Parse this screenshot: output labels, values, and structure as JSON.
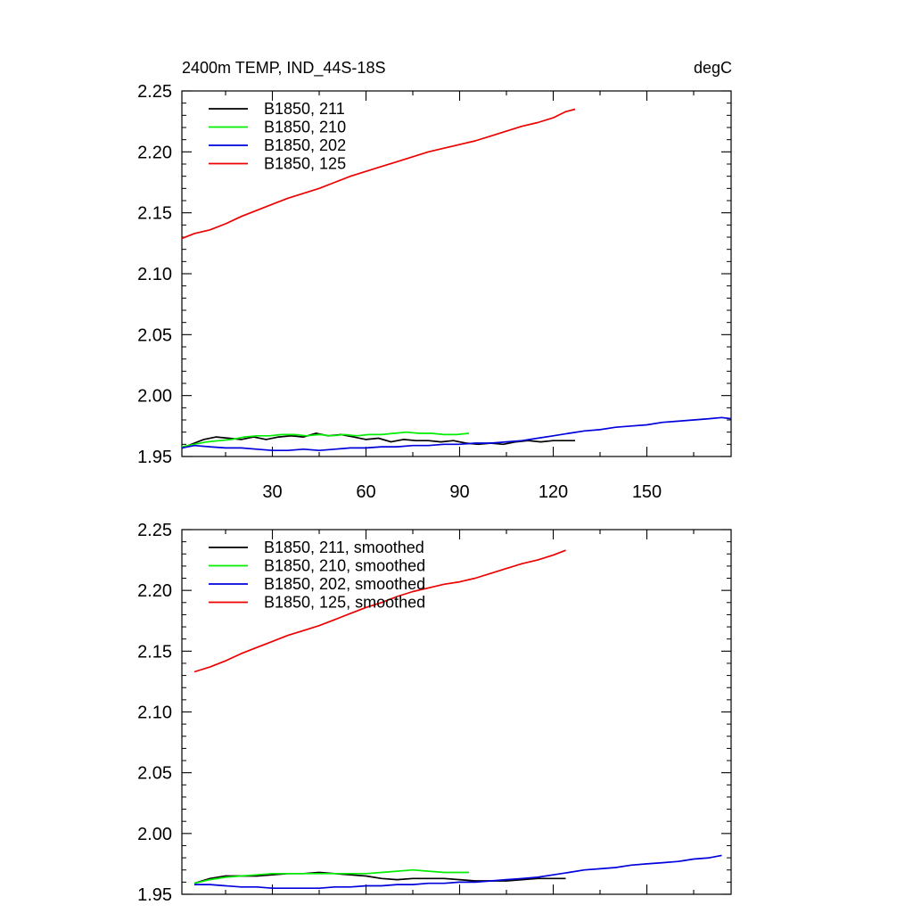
{
  "title_left": "2400m TEMP, IND_44S-18S",
  "title_right": "degC",
  "chart_data": [
    {
      "type": "line",
      "title": "2400m TEMP, IND_44S-18S",
      "units": "degC",
      "xlim": [
        1,
        177
      ],
      "ylim": [
        1.95,
        2.25
      ],
      "x_ticks": [
        30,
        60,
        90,
        120,
        150
      ],
      "y_ticks": [
        "2.25",
        "2.20",
        "2.15",
        "2.10",
        "2.05",
        "2.00",
        "1.95"
      ],
      "legend_position": "top-left",
      "grid": false,
      "series": [
        {
          "name": "B1850, 211",
          "color": "#000000",
          "x_end": 127,
          "points": [
            [
              1,
              1.957
            ],
            [
              5,
              1.961
            ],
            [
              8,
              1.964
            ],
            [
              12,
              1.966
            ],
            [
              16,
              1.965
            ],
            [
              20,
              1.964
            ],
            [
              24,
              1.966
            ],
            [
              28,
              1.964
            ],
            [
              32,
              1.966
            ],
            [
              36,
              1.967
            ],
            [
              40,
              1.966
            ],
            [
              44,
              1.969
            ],
            [
              48,
              1.967
            ],
            [
              52,
              1.968
            ],
            [
              56,
              1.966
            ],
            [
              60,
              1.964
            ],
            [
              64,
              1.965
            ],
            [
              68,
              1.962
            ],
            [
              72,
              1.964
            ],
            [
              76,
              1.963
            ],
            [
              80,
              1.963
            ],
            [
              84,
              1.962
            ],
            [
              88,
              1.963
            ],
            [
              92,
              1.961
            ],
            [
              96,
              1.96
            ],
            [
              100,
              1.961
            ],
            [
              104,
              1.96
            ],
            [
              108,
              1.962
            ],
            [
              112,
              1.963
            ],
            [
              116,
              1.962
            ],
            [
              120,
              1.963
            ],
            [
              124,
              1.963
            ],
            [
              127,
              1.963
            ]
          ]
        },
        {
          "name": "B1850, 210",
          "color": "#00ee00",
          "x_end": 93,
          "points": [
            [
              1,
              1.958
            ],
            [
              5,
              1.96
            ],
            [
              9,
              1.962
            ],
            [
              13,
              1.963
            ],
            [
              17,
              1.964
            ],
            [
              21,
              1.966
            ],
            [
              25,
              1.967
            ],
            [
              29,
              1.967
            ],
            [
              33,
              1.968
            ],
            [
              37,
              1.968
            ],
            [
              41,
              1.967
            ],
            [
              45,
              1.968
            ],
            [
              49,
              1.967
            ],
            [
              53,
              1.968
            ],
            [
              57,
              1.967
            ],
            [
              61,
              1.968
            ],
            [
              65,
              1.968
            ],
            [
              69,
              1.969
            ],
            [
              73,
              1.97
            ],
            [
              77,
              1.969
            ],
            [
              81,
              1.969
            ],
            [
              85,
              1.968
            ],
            [
              89,
              1.968
            ],
            [
              93,
              1.969
            ]
          ]
        },
        {
          "name": "B1850, 202",
          "color": "#0000dd",
          "x_end": 177,
          "points": [
            [
              1,
              1.957
            ],
            [
              5,
              1.959
            ],
            [
              10,
              1.958
            ],
            [
              15,
              1.957
            ],
            [
              20,
              1.957
            ],
            [
              25,
              1.956
            ],
            [
              30,
              1.955
            ],
            [
              35,
              1.955
            ],
            [
              40,
              1.956
            ],
            [
              45,
              1.955
            ],
            [
              50,
              1.956
            ],
            [
              55,
              1.957
            ],
            [
              60,
              1.957
            ],
            [
              65,
              1.958
            ],
            [
              70,
              1.958
            ],
            [
              75,
              1.959
            ],
            [
              80,
              1.959
            ],
            [
              85,
              1.96
            ],
            [
              90,
              1.96
            ],
            [
              95,
              1.961
            ],
            [
              100,
              1.961
            ],
            [
              105,
              1.962
            ],
            [
              110,
              1.963
            ],
            [
              115,
              1.965
            ],
            [
              120,
              1.967
            ],
            [
              125,
              1.969
            ],
            [
              130,
              1.971
            ],
            [
              135,
              1.972
            ],
            [
              140,
              1.974
            ],
            [
              145,
              1.975
            ],
            [
              150,
              1.976
            ],
            [
              155,
              1.978
            ],
            [
              160,
              1.979
            ],
            [
              165,
              1.98
            ],
            [
              170,
              1.981
            ],
            [
              174,
              1.982
            ],
            [
              177,
              1.981
            ]
          ]
        },
        {
          "name": "B1850, 125",
          "color": "#ee0000",
          "x_end": 127,
          "points": [
            [
              1,
              2.129
            ],
            [
              5,
              2.133
            ],
            [
              10,
              2.136
            ],
            [
              15,
              2.141
            ],
            [
              20,
              2.147
            ],
            [
              25,
              2.152
            ],
            [
              30,
              2.157
            ],
            [
              35,
              2.162
            ],
            [
              40,
              2.166
            ],
            [
              45,
              2.17
            ],
            [
              50,
              2.175
            ],
            [
              55,
              2.18
            ],
            [
              60,
              2.184
            ],
            [
              65,
              2.188
            ],
            [
              70,
              2.192
            ],
            [
              75,
              2.196
            ],
            [
              80,
              2.2
            ],
            [
              85,
              2.203
            ],
            [
              90,
              2.206
            ],
            [
              95,
              2.209
            ],
            [
              100,
              2.213
            ],
            [
              105,
              2.217
            ],
            [
              110,
              2.221
            ],
            [
              115,
              2.224
            ],
            [
              120,
              2.228
            ],
            [
              124,
              2.233
            ],
            [
              127,
              2.235
            ]
          ]
        }
      ]
    },
    {
      "type": "line",
      "xlim": [
        1,
        177
      ],
      "ylim": [
        1.95,
        2.25
      ],
      "y_ticks": [
        "2.25",
        "2.20",
        "2.15",
        "2.10",
        "2.05",
        "2.00",
        "1.95"
      ],
      "legend_position": "top-left",
      "grid": false,
      "series": [
        {
          "name": "B1850, 211, smoothed",
          "color": "#000000",
          "points": [
            [
              5,
              1.959
            ],
            [
              10,
              1.963
            ],
            [
              15,
              1.965
            ],
            [
              20,
              1.965
            ],
            [
              25,
              1.965
            ],
            [
              30,
              1.966
            ],
            [
              35,
              1.967
            ],
            [
              40,
              1.967
            ],
            [
              45,
              1.968
            ],
            [
              50,
              1.967
            ],
            [
              55,
              1.966
            ],
            [
              60,
              1.965
            ],
            [
              65,
              1.963
            ],
            [
              70,
              1.962
            ],
            [
              75,
              1.963
            ],
            [
              80,
              1.963
            ],
            [
              85,
              1.963
            ],
            [
              90,
              1.962
            ],
            [
              95,
              1.961
            ],
            [
              100,
              1.961
            ],
            [
              105,
              1.961
            ],
            [
              110,
              1.962
            ],
            [
              115,
              1.963
            ],
            [
              120,
              1.963
            ],
            [
              124,
              1.963
            ]
          ]
        },
        {
          "name": "B1850, 210, smoothed",
          "color": "#00ee00",
          "points": [
            [
              5,
              1.959
            ],
            [
              10,
              1.962
            ],
            [
              15,
              1.964
            ],
            [
              20,
              1.965
            ],
            [
              25,
              1.966
            ],
            [
              30,
              1.967
            ],
            [
              35,
              1.967
            ],
            [
              40,
              1.967
            ],
            [
              45,
              1.967
            ],
            [
              50,
              1.967
            ],
            [
              55,
              1.967
            ],
            [
              60,
              1.967
            ],
            [
              65,
              1.968
            ],
            [
              70,
              1.969
            ],
            [
              75,
              1.97
            ],
            [
              80,
              1.969
            ],
            [
              85,
              1.968
            ],
            [
              90,
              1.968
            ],
            [
              93,
              1.968
            ]
          ]
        },
        {
          "name": "B1850, 202, smoothed",
          "color": "#0000dd",
          "points": [
            [
              5,
              1.958
            ],
            [
              10,
              1.958
            ],
            [
              15,
              1.957
            ],
            [
              20,
              1.956
            ],
            [
              25,
              1.956
            ],
            [
              30,
              1.955
            ],
            [
              35,
              1.955
            ],
            [
              40,
              1.955
            ],
            [
              45,
              1.955
            ],
            [
              50,
              1.956
            ],
            [
              55,
              1.956
            ],
            [
              60,
              1.957
            ],
            [
              65,
              1.957
            ],
            [
              70,
              1.958
            ],
            [
              75,
              1.958
            ],
            [
              80,
              1.959
            ],
            [
              85,
              1.959
            ],
            [
              90,
              1.96
            ],
            [
              95,
              1.96
            ],
            [
              100,
              1.961
            ],
            [
              105,
              1.962
            ],
            [
              110,
              1.963
            ],
            [
              115,
              1.964
            ],
            [
              120,
              1.966
            ],
            [
              125,
              1.968
            ],
            [
              130,
              1.97
            ],
            [
              135,
              1.971
            ],
            [
              140,
              1.972
            ],
            [
              145,
              1.974
            ],
            [
              150,
              1.975
            ],
            [
              155,
              1.976
            ],
            [
              160,
              1.977
            ],
            [
              165,
              1.979
            ],
            [
              170,
              1.98
            ],
            [
              174,
              1.982
            ]
          ]
        },
        {
          "name": "B1850, 125, smoothed",
          "color": "#ee0000",
          "points": [
            [
              5,
              2.133
            ],
            [
              10,
              2.137
            ],
            [
              15,
              2.142
            ],
            [
              20,
              2.148
            ],
            [
              25,
              2.153
            ],
            [
              30,
              2.158
            ],
            [
              35,
              2.163
            ],
            [
              40,
              2.167
            ],
            [
              45,
              2.171
            ],
            [
              50,
              2.176
            ],
            [
              55,
              2.181
            ],
            [
              60,
              2.186
            ],
            [
              65,
              2.19
            ],
            [
              70,
              2.195
            ],
            [
              75,
              2.199
            ],
            [
              80,
              2.202
            ],
            [
              85,
              2.205
            ],
            [
              90,
              2.207
            ],
            [
              95,
              2.21
            ],
            [
              100,
              2.214
            ],
            [
              105,
              2.218
            ],
            [
              110,
              2.222
            ],
            [
              115,
              2.225
            ],
            [
              120,
              2.229
            ],
            [
              124,
              2.233
            ]
          ]
        }
      ]
    }
  ]
}
